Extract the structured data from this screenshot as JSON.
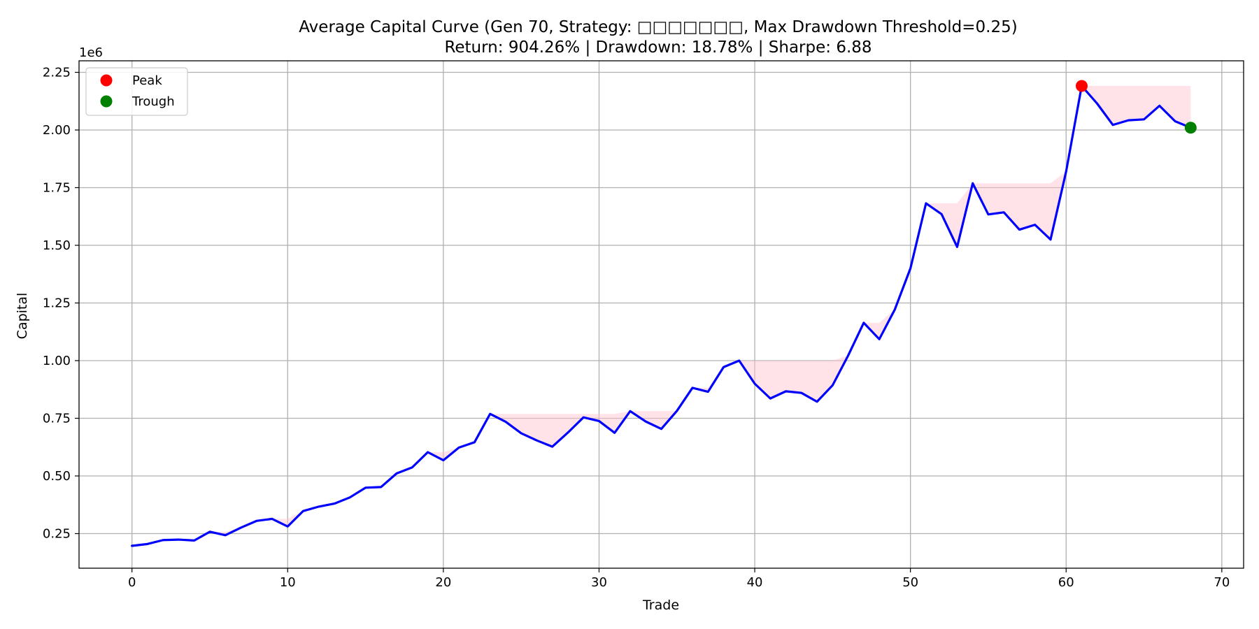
{
  "chart_data": {
    "type": "line",
    "title": "Average Capital Curve (Gen 70, Strategy: □□□□□□□, Max Drawdown Threshold=0.25)",
    "subtitle": "Return: 904.26% | Drawdown: 18.78% | Sharpe: 6.88",
    "xlabel": "Trade",
    "ylabel": "Capital",
    "y_offset_label": "1e6",
    "xlim": [
      -3.4,
      71.4
    ],
    "ylim": [
      0.1,
      2.3
    ],
    "x_ticks": [
      0,
      10,
      20,
      30,
      40,
      50,
      60,
      70
    ],
    "y_ticks": [
      0.25,
      0.5,
      0.75,
      1.0,
      1.25,
      1.5,
      1.75,
      2.0,
      2.25
    ],
    "y_tick_labels": [
      "0.25",
      "0.50",
      "0.75",
      "1.00",
      "1.25",
      "1.50",
      "1.75",
      "2.00",
      "2.25"
    ],
    "grid": true,
    "legend_position": "top-left",
    "colors": {
      "line": "#0000ff",
      "peak": "#ff0000",
      "trough": "#008000",
      "drawdown_fill": "#ffc0cb"
    },
    "series": [
      {
        "values": [
          0.197,
          0.205,
          0.222,
          0.224,
          0.22,
          0.258,
          0.243,
          0.276,
          0.305,
          0.314,
          0.281,
          0.348,
          0.367,
          0.38,
          0.407,
          0.449,
          0.452,
          0.511,
          0.537,
          0.603,
          0.568,
          0.623,
          0.646,
          0.769,
          0.735,
          0.685,
          0.654,
          0.627,
          0.688,
          0.754,
          0.738,
          0.687,
          0.781,
          0.736,
          0.704,
          0.782,
          0.882,
          0.865,
          0.972,
          1.0,
          0.9,
          0.836,
          0.867,
          0.86,
          0.822,
          0.893,
          1.022,
          1.164,
          1.093,
          1.222,
          1.4,
          1.682,
          1.635,
          1.493,
          1.769,
          1.634,
          1.643,
          1.568,
          1.589,
          1.525,
          1.82,
          2.191,
          2.114,
          2.022,
          2.042,
          2.046,
          2.105,
          2.038,
          2.01
        ]
      }
    ],
    "peak": {
      "label": "Peak",
      "x": 61,
      "y": 2.191
    },
    "trough": {
      "label": "Trough",
      "x": 68,
      "y": 2.01
    }
  }
}
